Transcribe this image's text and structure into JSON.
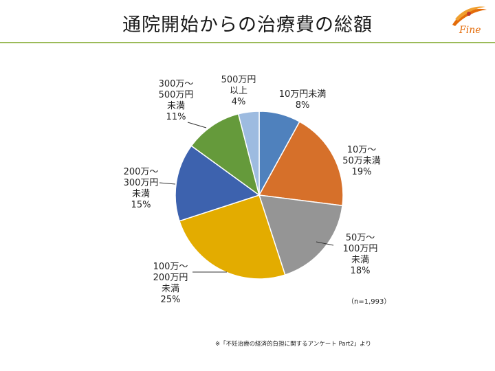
{
  "header": {
    "title": "通院開始からの治療費の総額",
    "logo_text": "Fine"
  },
  "chart_data": {
    "type": "pie",
    "title": "",
    "start_angle_deg": 0,
    "direction": "clockwise",
    "slices": [
      {
        "label_lines": [
          "10万円未満",
          "8%"
        ],
        "value": 8,
        "color": "#4f81bd"
      },
      {
        "label_lines": [
          "10万～",
          "50万未満",
          "19%"
        ],
        "value": 19,
        "color": "#d6702a"
      },
      {
        "label_lines": [
          "50万～",
          "100万円",
          "未満",
          "18%"
        ],
        "value": 18,
        "color": "#959595"
      },
      {
        "label_lines": [
          "100万～",
          "200万円",
          "未満",
          "25%"
        ],
        "value": 25,
        "color": "#e3ac00"
      },
      {
        "label_lines": [
          "200万～",
          "300万円",
          "未満",
          "15%"
        ],
        "value": 15,
        "color": "#3d62ae"
      },
      {
        "label_lines": [
          "300万～",
          "500万円",
          "未満",
          "11%"
        ],
        "value": 11,
        "color": "#659a3b"
      },
      {
        "label_lines": [
          "500万円",
          "以上",
          "4%"
        ],
        "value": 4,
        "color": "#9dbbe0"
      }
    ],
    "sample_note": "（n=1,993）"
  },
  "footer": {
    "source": "※「不妊治療の経済的負担に関するアンケート Part2」より"
  },
  "colors": {
    "title_rule": "#9bbb59",
    "logo_accent": "#e46c0a"
  }
}
